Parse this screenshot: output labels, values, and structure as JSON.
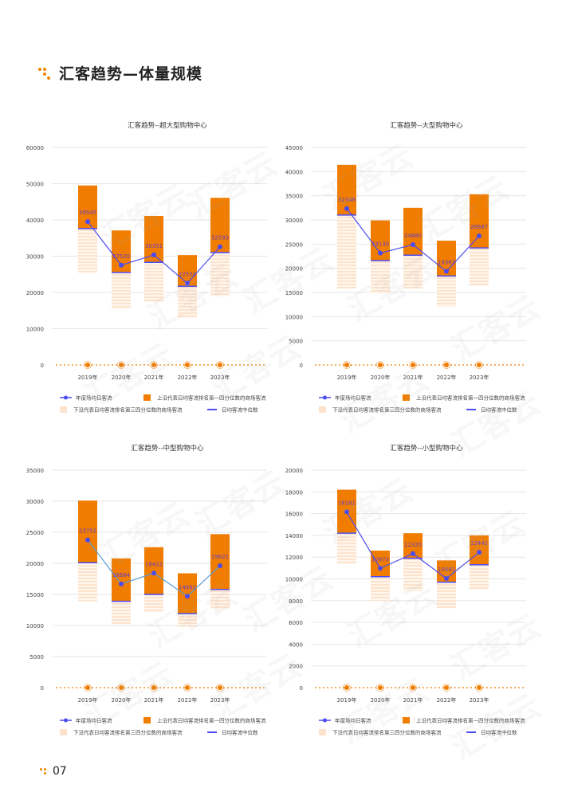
{
  "page": {
    "title": "汇客趋势—体量规模",
    "page_number": "07",
    "watermark": "汇客云"
  },
  "legend": {
    "avg_line": "年度场均日客流",
    "upper_bar": "上沿代表日均客流排名第一四分位数的商场客流",
    "lower_bar": "下沿代表日均客流排名第三四分位数的商场客流",
    "median": "日均客流中位数"
  },
  "colors": {
    "orange": "#f07c00",
    "lower_fill": "#fde3cc",
    "line": "#4b4bf0",
    "line_mid": "#5b9bd5",
    "label": "#6a3fc8",
    "grid": "#e6e6e6"
  },
  "chart_data": [
    {
      "type": "bar",
      "title": "汇客趋势--超大型购物中心",
      "categories": [
        "2019年",
        "2020年",
        "2021年",
        "2022年",
        "2023年"
      ],
      "ylim": [
        0,
        60000
      ],
      "yticks": [
        0,
        10000,
        20000,
        30000,
        40000,
        50000,
        60000
      ],
      "ytick_labels": [
        "0",
        "10000",
        "20000",
        "30000",
        "40000",
        "50000",
        "60000"
      ],
      "series": [
        {
          "name": "上沿代表日均客流排名第一四分位数的商场客流",
          "values": [
            49500,
            37100,
            41100,
            30300,
            46100
          ]
        },
        {
          "name": "日均客流中位数",
          "values": [
            37600,
            25500,
            28300,
            21700,
            31000
          ]
        },
        {
          "name": "下沿代表日均客流排名第三四分位数的商场客流",
          "values": [
            25500,
            15400,
            17400,
            13000,
            18900
          ]
        },
        {
          "name": "年度场均日客流",
          "values": [
            39545,
            27520,
            30351,
            22550,
            32593
          ]
        }
      ],
      "data_labels": [
        "39545",
        "27520",
        "30351",
        "22550",
        "32593"
      ],
      "line_color_key": "line",
      "xlabel": "",
      "ylabel": "",
      "grid": true,
      "legend": "bottom"
    },
    {
      "type": "bar",
      "title": "汇客趋势--大型购物中心",
      "categories": [
        "2019年",
        "2020年",
        "2021年",
        "2022年",
        "2023年"
      ],
      "ylim": [
        0,
        45000
      ],
      "yticks": [
        0,
        5000,
        10000,
        15000,
        20000,
        25000,
        30000,
        35000,
        40000,
        45000
      ],
      "ytick_labels": [
        "0",
        "5000",
        "10000",
        "15000",
        "20000",
        "25000",
        "30000",
        "35000",
        "40000",
        "45000"
      ],
      "series": [
        {
          "name": "上沿代表日均客流排名第一四分位数的商场客流",
          "values": [
            41400,
            29900,
            32500,
            25700,
            35300
          ]
        },
        {
          "name": "日均客流中位数",
          "values": [
            31000,
            21600,
            22700,
            18400,
            24200
          ]
        },
        {
          "name": "下沿代表日均客流排名第三四分位数的商场客流",
          "values": [
            15800,
            14800,
            15800,
            12100,
            16400
          ]
        },
        {
          "name": "年度场均日客流",
          "values": [
            32348,
            23130,
            24880,
            19361,
            26687
          ]
        }
      ],
      "data_labels": [
        "32348",
        "23130",
        "24880",
        "19361",
        "26687"
      ],
      "line_color_key": "line",
      "xlabel": "",
      "ylabel": "",
      "grid": true,
      "legend": "bottom"
    },
    {
      "type": "bar",
      "title": "汇客趋势--中型购物中心",
      "categories": [
        "2019年",
        "2020年",
        "2021年",
        "2022年",
        "2023年"
      ],
      "ylim": [
        0,
        35000
      ],
      "yticks": [
        0,
        5000,
        10000,
        15000,
        20000,
        25000,
        30000,
        35000
      ],
      "ytick_labels": [
        "0",
        "5000",
        "10000",
        "15000",
        "20000",
        "25000",
        "30000",
        "35000"
      ],
      "series": [
        {
          "name": "上沿代表日均客流排名第一四分位数的商场客流",
          "values": [
            30100,
            20800,
            22600,
            18400,
            24700
          ]
        },
        {
          "name": "日均客流中位数",
          "values": [
            20100,
            13900,
            15000,
            11900,
            15800
          ]
        },
        {
          "name": "下沿代表日均客流排名第三四分位数的商场客流",
          "values": [
            13900,
            10200,
            12100,
            9800,
            12600
          ]
        },
        {
          "name": "年度场均日客流",
          "values": [
            23752,
            16684,
            18422,
            14692,
            19621
          ]
        }
      ],
      "data_labels": [
        "23752",
        "16684",
        "18422",
        "14692",
        "19621"
      ],
      "line_color_key": "line_mid",
      "xlabel": "",
      "ylabel": "",
      "grid": true,
      "legend": "bottom"
    },
    {
      "type": "bar",
      "title": "汇客趋势--小型购物中心",
      "categories": [
        "2019年",
        "2020年",
        "2021年",
        "2022年",
        "2023年"
      ],
      "ylim": [
        0,
        20000
      ],
      "yticks": [
        0,
        2000,
        4000,
        6000,
        8000,
        10000,
        12000,
        14000,
        16000,
        18000,
        20000
      ],
      "ytick_labels": [
        "0",
        "2000",
        "4000",
        "6000",
        "8000",
        "10000",
        "12000",
        "14000",
        "16000",
        "18000",
        "20000"
      ],
      "series": [
        {
          "name": "上沿代表日均客流排名第一四分位数的商场客流",
          "values": [
            18200,
            12600,
            14200,
            11700,
            14000
          ]
        },
        {
          "name": "日均客流中位数",
          "values": [
            14200,
            10200,
            11900,
            9700,
            11300
          ]
        },
        {
          "name": "下沿代表日均客流排名第三四分位数的商场客流",
          "values": [
            11400,
            8000,
            8900,
            7300,
            9000
          ]
        },
        {
          "name": "年度场均日客流",
          "values": [
            16161,
            10970,
            12320,
            10041,
            12441
          ]
        }
      ],
      "data_labels": [
        "16161",
        "10970",
        "12320",
        "10041",
        "12441"
      ],
      "line_color_key": "line",
      "xlabel": "",
      "ylabel": "",
      "grid": true,
      "legend": "bottom"
    }
  ]
}
